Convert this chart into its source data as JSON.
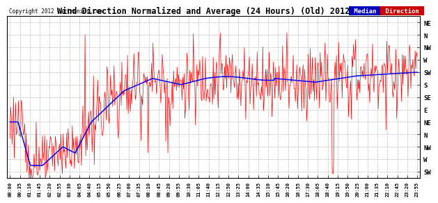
{
  "title": "Wind Direction Normalized and Average (24 Hours) (Old) 20121110",
  "copyright": "Copyright 2012 Cartronics.com",
  "background_color": "#ffffff",
  "plot_bg_color": "#ffffff",
  "grid_color": "#aaaaaa",
  "ytick_labels": [
    "NE",
    "N",
    "NW",
    "W",
    "SW",
    "S",
    "SE",
    "E",
    "NE",
    "N",
    "NW",
    "W",
    "SW"
  ],
  "ytick_values": [
    13,
    12,
    11,
    10,
    9,
    8,
    7,
    6,
    5,
    4,
    3,
    2,
    1
  ],
  "xtick_labels": [
    "00:00",
    "00:35",
    "01:10",
    "01:45",
    "02:20",
    "02:55",
    "03:30",
    "04:05",
    "04:40",
    "05:15",
    "05:50",
    "06:25",
    "07:00",
    "07:35",
    "08:10",
    "08:45",
    "09:20",
    "09:55",
    "10:30",
    "11:05",
    "11:40",
    "12:15",
    "12:50",
    "13:25",
    "14:00",
    "14:35",
    "15:10",
    "15:45",
    "16:20",
    "16:55",
    "17:30",
    "18:05",
    "18:40",
    "19:15",
    "19:50",
    "20:25",
    "21:00",
    "21:35",
    "22:10",
    "22:45",
    "23:20",
    "23:55"
  ],
  "legend_median_bg": "#0000bb",
  "legend_direction_bg": "#cc0000",
  "legend_median_text": "Median",
  "legend_direction_text": "Direction",
  "red_line_color": "#ff0000",
  "blue_line_color": "#0000ff",
  "ylim_min": 0.5,
  "ylim_max": 13.5,
  "n_xticks": 42
}
